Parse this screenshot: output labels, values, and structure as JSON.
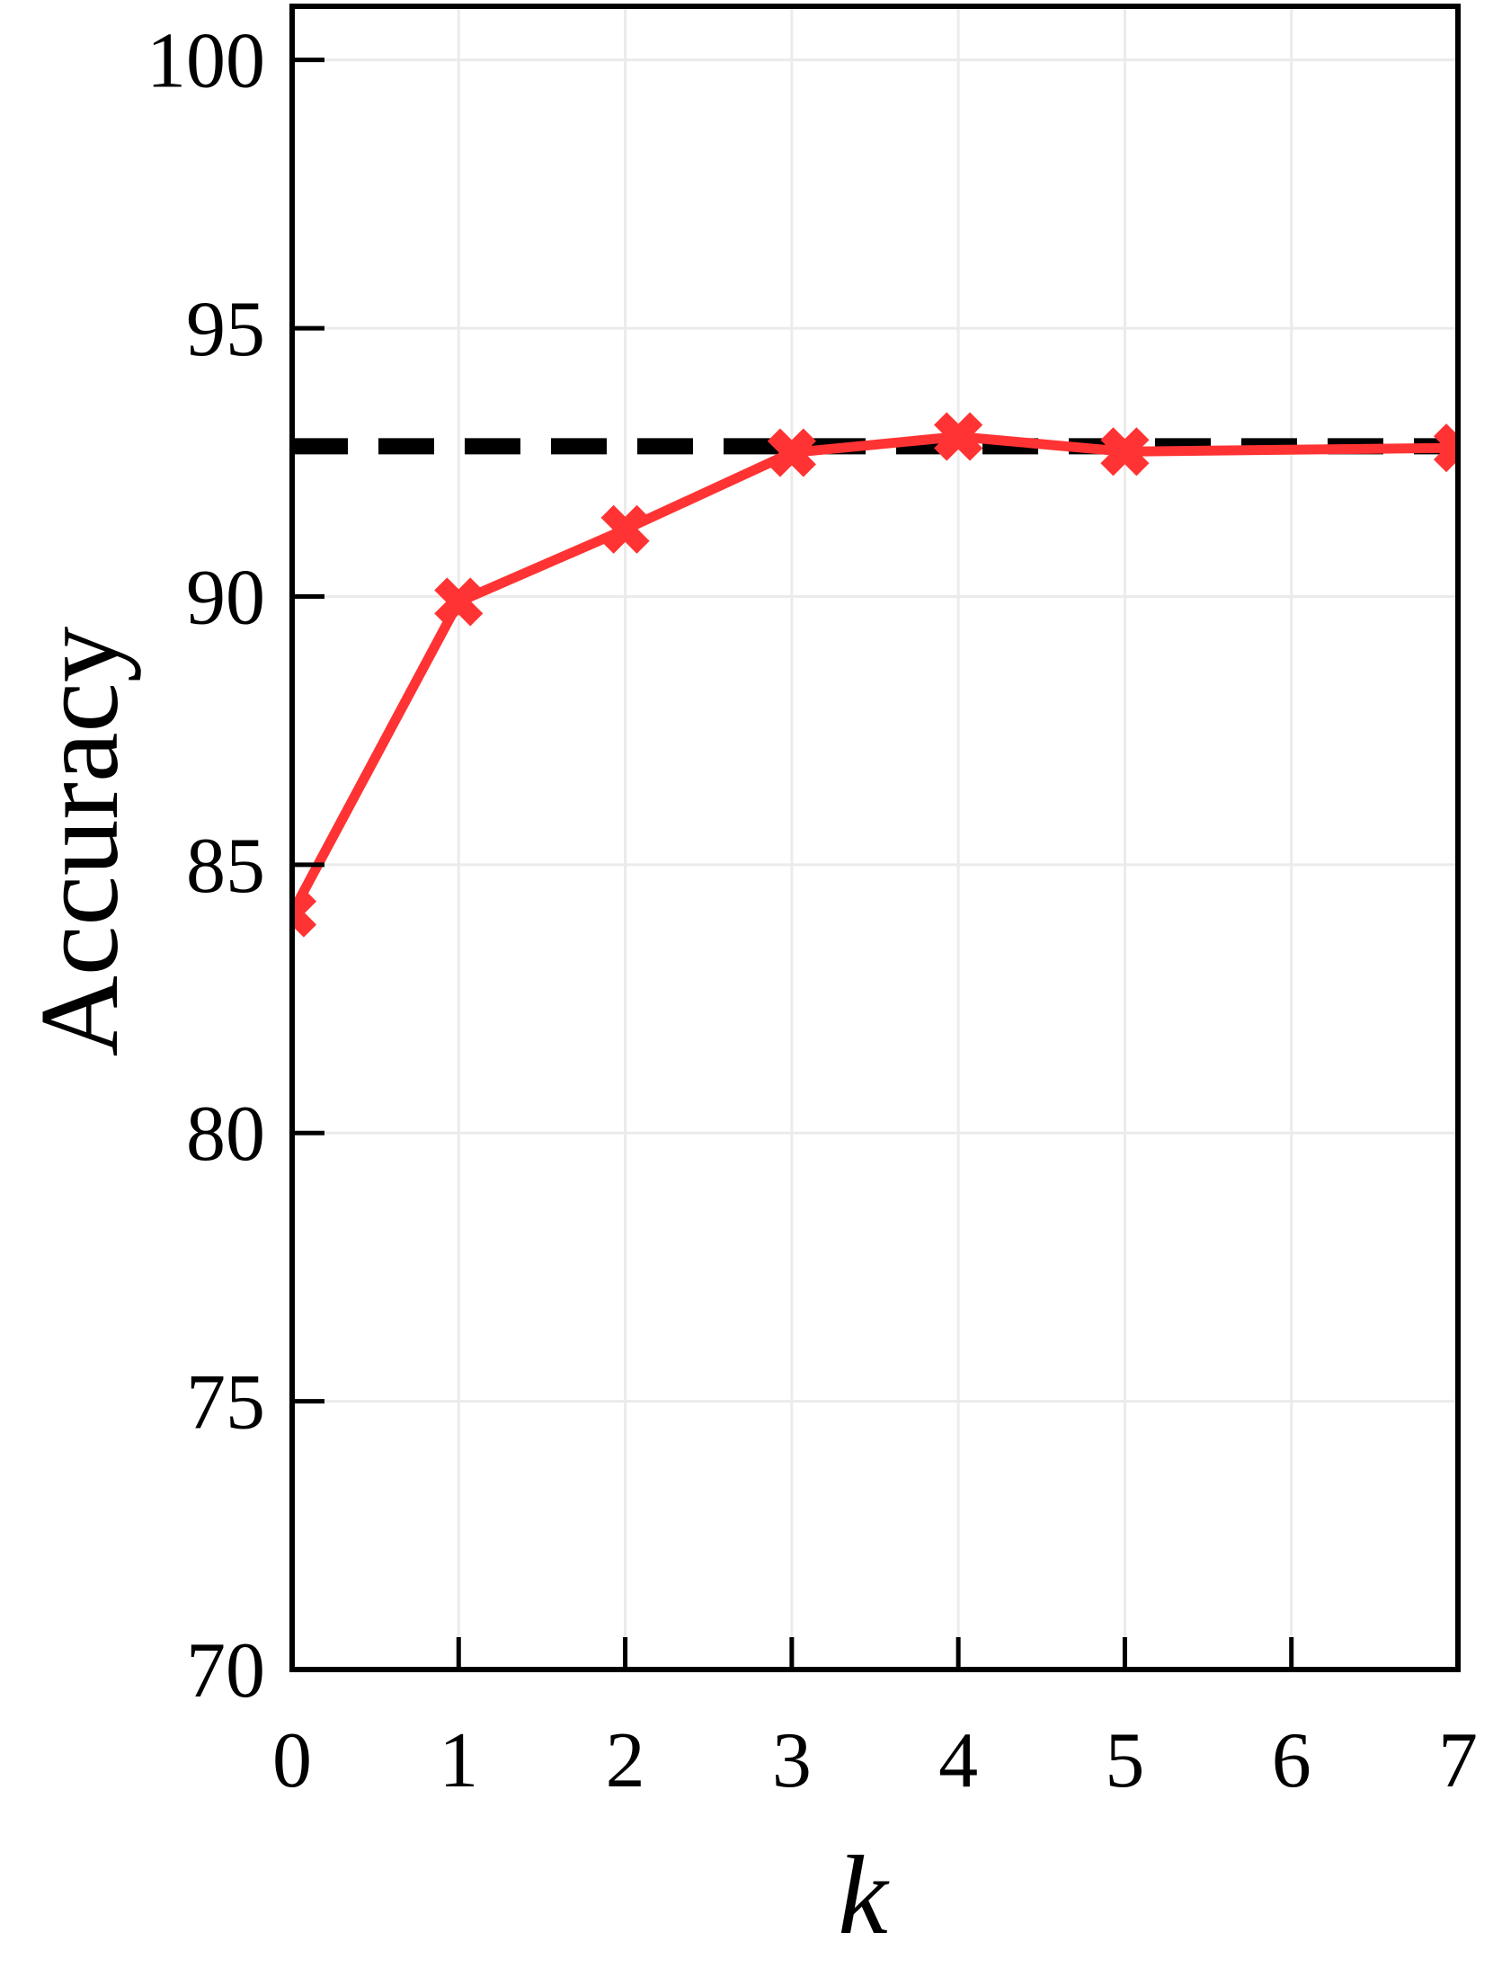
{
  "chart_data": {
    "type": "line",
    "x_label": "k",
    "y_label": "Accuracy",
    "series": [
      {
        "color": "#ff3333",
        "x": [
          0,
          1,
          2,
          3,
          4,
          5,
          7
        ],
        "values": [
          84.1,
          89.9,
          91.25,
          92.68,
          92.98,
          92.7,
          92.77
        ]
      }
    ],
    "reference_line": {
      "value": 92.8,
      "color": "#000000"
    },
    "xlim": [
      0,
      7
    ],
    "xticks": [
      0,
      1,
      2,
      3,
      4,
      5,
      6,
      7
    ],
    "ylim": [
      70,
      101
    ],
    "yticks": [
      70,
      75,
      80,
      85,
      90,
      95,
      100
    ],
    "grid": true
  }
}
